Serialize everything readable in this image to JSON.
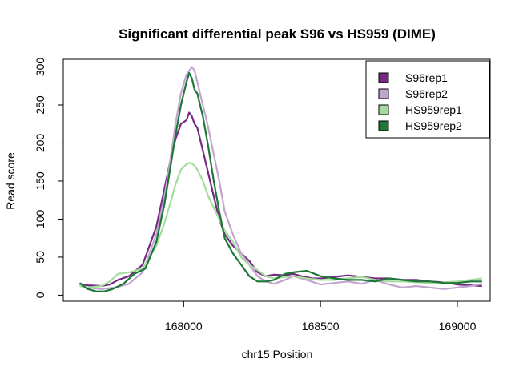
{
  "chart_data": {
    "type": "line",
    "title": "Significant differential peak S96 vs HS959 (DIME)",
    "xlabel": "chr15 Position",
    "ylabel": "Read score",
    "xlim": [
      167560,
      169120
    ],
    "ylim": [
      -8,
      310
    ],
    "xticks": [
      168000,
      168500,
      169000
    ],
    "yticks": [
      0,
      50,
      100,
      150,
      200,
      250,
      300
    ],
    "grid": false,
    "legend_position": "top-right",
    "series": [
      {
        "name": "S96rep1",
        "color": "#762a83",
        "x": [
          167620,
          167650,
          167700,
          167730,
          167760,
          167800,
          167850,
          167900,
          167930,
          167950,
          167970,
          167990,
          168010,
          168020,
          168030,
          168040,
          168050,
          168070,
          168090,
          168110,
          168130,
          168150,
          168180,
          168210,
          168240,
          168270,
          168300,
          168330,
          168370,
          168400,
          168430,
          168470,
          168500,
          168550,
          168600,
          168650,
          168700,
          168750,
          168800,
          168850,
          168900,
          168950,
          169000,
          169050,
          169090
        ],
        "y": [
          15,
          13,
          12,
          14,
          20,
          25,
          40,
          90,
          140,
          175,
          205,
          225,
          230,
          240,
          235,
          225,
          220,
          190,
          160,
          130,
          100,
          80,
          65,
          55,
          45,
          30,
          25,
          27,
          26,
          28,
          25,
          22,
          22,
          24,
          26,
          24,
          22,
          22,
          20,
          20,
          18,
          17,
          14,
          13,
          12
        ]
      },
      {
        "name": "S96rep2",
        "color": "#c2a5cf",
        "x": [
          167620,
          167650,
          167700,
          167750,
          167800,
          167850,
          167900,
          167930,
          167950,
          167970,
          167990,
          168010,
          168030,
          168040,
          168050,
          168070,
          168090,
          168110,
          168130,
          168150,
          168180,
          168210,
          168240,
          168270,
          168300,
          168330,
          168370,
          168400,
          168450,
          168500,
          168550,
          168600,
          168650,
          168700,
          168750,
          168800,
          168850,
          168900,
          168950,
          169000,
          169050,
          169090
        ],
        "y": [
          14,
          10,
          8,
          10,
          15,
          30,
          80,
          130,
          175,
          225,
          265,
          290,
          300,
          295,
          280,
          250,
          220,
          185,
          150,
          110,
          80,
          55,
          40,
          25,
          18,
          15,
          20,
          25,
          20,
          14,
          16,
          18,
          15,
          20,
          14,
          10,
          12,
          10,
          8,
          10,
          12,
          15
        ]
      },
      {
        "name": "HS959rep1",
        "color": "#a6dba0",
        "x": [
          167620,
          167650,
          167700,
          167730,
          167760,
          167800,
          167850,
          167900,
          167930,
          167950,
          167970,
          167990,
          168010,
          168020,
          168030,
          168040,
          168050,
          168070,
          168090,
          168110,
          168130,
          168150,
          168180,
          168210,
          168240,
          168270,
          168300,
          168330,
          168370,
          168400,
          168450,
          168500,
          168550,
          168600,
          168650,
          168700,
          168750,
          168800,
          168850,
          168900,
          168950,
          169000,
          169050,
          169090
        ],
        "y": [
          12,
          10,
          12,
          18,
          28,
          30,
          35,
          65,
          95,
          120,
          145,
          165,
          172,
          174,
          173,
          170,
          165,
          150,
          130,
          115,
          100,
          85,
          70,
          50,
          40,
          33,
          25,
          22,
          24,
          25,
          22,
          20,
          20,
          22,
          24,
          20,
          18,
          18,
          17,
          16,
          17,
          18,
          20,
          22
        ]
      },
      {
        "name": "HS959rep2",
        "color": "#1b7837",
        "x": [
          167620,
          167650,
          167680,
          167710,
          167740,
          167780,
          167820,
          167860,
          167900,
          167930,
          167950,
          167970,
          167990,
          168010,
          168020,
          168030,
          168040,
          168050,
          168070,
          168090,
          168110,
          168130,
          168150,
          168180,
          168210,
          168240,
          168270,
          168300,
          168330,
          168370,
          168400,
          168450,
          168500,
          168550,
          168600,
          168650,
          168700,
          168750,
          168800,
          168850,
          168900,
          168950,
          169000,
          169050,
          169090
        ],
        "y": [
          16,
          8,
          5,
          5,
          8,
          15,
          28,
          35,
          70,
          120,
          165,
          210,
          250,
          280,
          292,
          285,
          270,
          265,
          235,
          195,
          150,
          110,
          75,
          55,
          40,
          25,
          18,
          18,
          20,
          28,
          30,
          32,
          25,
          22,
          20,
          20,
          18,
          22,
          20,
          18,
          18,
          16,
          16,
          18,
          18
        ]
      }
    ]
  }
}
